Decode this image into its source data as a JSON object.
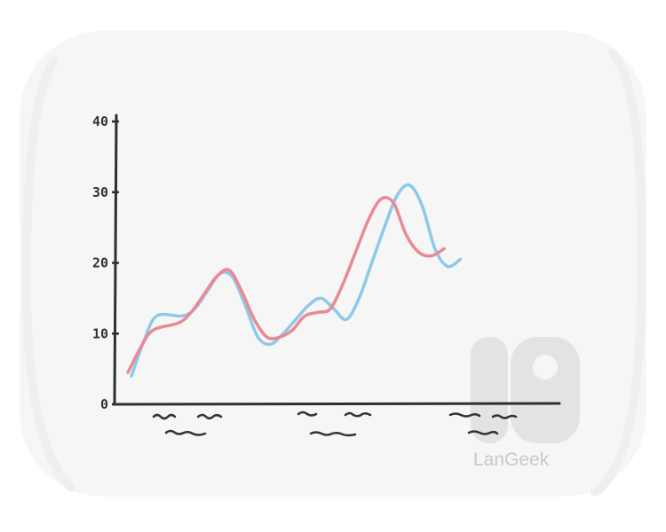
{
  "chart_data": {
    "type": "line",
    "title": "",
    "xlabel": "",
    "ylabel": "",
    "ylim": [
      0,
      40
    ],
    "yticks": [
      "0",
      "10",
      "20",
      "30",
      "40"
    ],
    "x": [
      0,
      0.5,
      1,
      2,
      2.5,
      3,
      3.5,
      4,
      4.5,
      5,
      5.5,
      6,
      6.5,
      7,
      7.5,
      8,
      8.5,
      9,
      9.5,
      10,
      10.5,
      11,
      11.5,
      12,
      12.5,
      13,
      13.5,
      14,
      14.5,
      15,
      15.5,
      16,
      16.5,
      17
    ],
    "series": [
      {
        "color": "#8ec9ea",
        "values": [
          4,
          9,
          12.5,
          12.5,
          13.5,
          16,
          18.5,
          18,
          14,
          9.5,
          8.5,
          10,
          12,
          14,
          15,
          13.5,
          12,
          15,
          20,
          25,
          29.5,
          31,
          28,
          22,
          19.5,
          20.5,
          null,
          null,
          null,
          null,
          null,
          null,
          null,
          null
        ]
      },
      {
        "color": "#e98a93",
        "values": [
          4.5,
          8,
          10.5,
          11.5,
          13,
          15.5,
          18,
          19,
          16,
          12,
          9.5,
          9.5,
          10.5,
          12.5,
          13,
          13.5,
          17,
          21.5,
          26,
          29,
          28.5,
          24,
          21.5,
          21,
          22,
          null,
          null,
          null,
          null,
          null,
          null,
          null,
          null,
          null
        ]
      }
    ]
  },
  "brand": {
    "logo_alt": "L9",
    "name": "LanGeek",
    "logo_color": "#e3e3e3",
    "name_color": "#c9c9c9"
  },
  "background": {
    "card_color": "#f6f6f6"
  }
}
